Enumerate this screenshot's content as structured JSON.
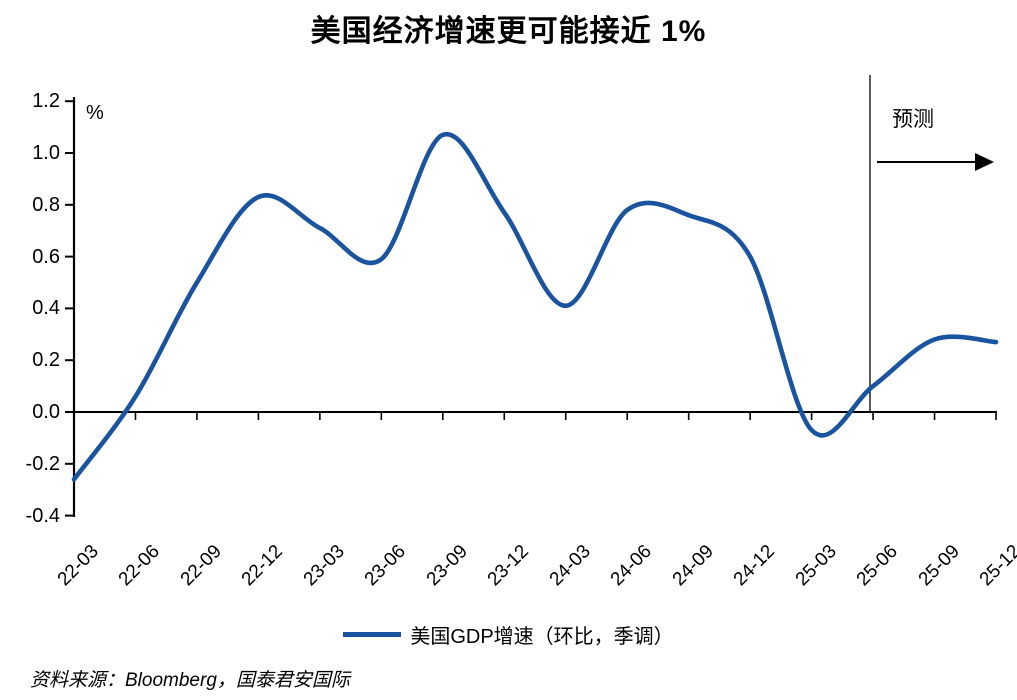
{
  "chart": {
    "title": "美国经济增速更可能接近 1%",
    "unit_label": "%",
    "forecast_label": "预测",
    "legend": {
      "label": "美国GDP增速（环比，季调）"
    },
    "source": "资料来源：Bloomberg，国泰君安国际"
  },
  "chart_data": {
    "type": "line",
    "title": "美国经济增速更可能接近 1%",
    "ylabel": "%",
    "categories": [
      "22-03",
      "22-06",
      "22-09",
      "22-12",
      "23-03",
      "23-06",
      "23-09",
      "23-12",
      "24-03",
      "24-06",
      "24-09",
      "24-12",
      "25-03",
      "25-06",
      "25-09",
      "25-12"
    ],
    "series": [
      {
        "name": "美国GDP增速（环比，季调）",
        "color": "#1A53A0",
        "values": [
          -0.26,
          0.06,
          0.5,
          0.83,
          0.71,
          0.59,
          1.07,
          0.77,
          0.41,
          0.78,
          0.76,
          0.6,
          -0.07,
          0.1,
          0.28,
          0.27
        ]
      }
    ],
    "y_ticks": [
      "1.2",
      "1.0",
      "0.8",
      "0.6",
      "0.4",
      "0.2",
      "0.0",
      "-0.2",
      "-0.4"
    ],
    "ylim": [
      -0.4,
      1.2
    ],
    "grid": false,
    "legend_position": "bottom",
    "annotations": {
      "forecast_label": "预测",
      "forecast_start_category": "25-06",
      "forecast_arrow_direction": "right"
    }
  }
}
